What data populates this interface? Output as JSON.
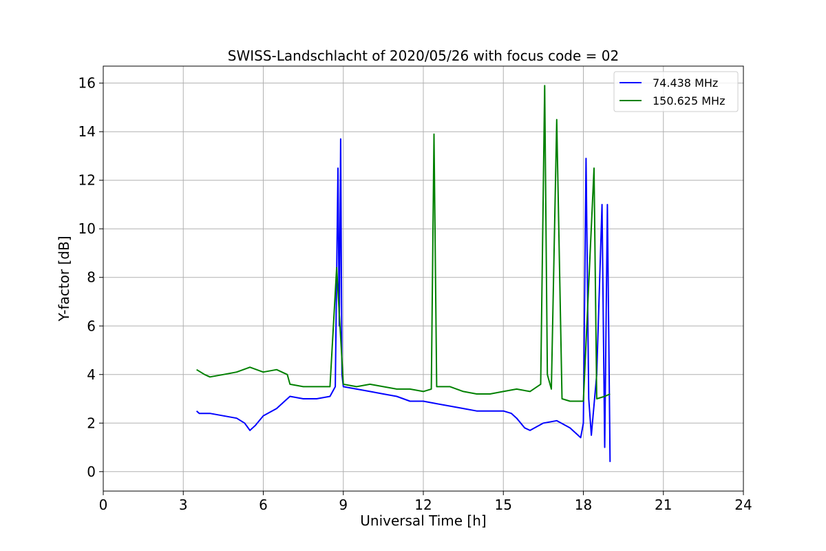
{
  "chart_data": {
    "type": "line",
    "title": "SWISS-Landschlacht of 2020/05/26 with focus code = 02",
    "xlabel": "Universal Time [h]",
    "ylabel": "Y-factor [dB]",
    "xlim": [
      0,
      24
    ],
    "ylim": [
      -0.8,
      16.7
    ],
    "xticks": [
      0,
      3,
      6,
      9,
      12,
      15,
      18,
      21,
      24
    ],
    "yticks": [
      0,
      2,
      4,
      6,
      8,
      10,
      12,
      14,
      16
    ],
    "grid": true,
    "legend_position": "top-right",
    "series": [
      {
        "name": "74.438 MHz",
        "color": "#0000ff",
        "x": [
          3.5,
          3.6,
          4.0,
          4.5,
          5.0,
          5.3,
          5.5,
          5.6,
          5.7,
          6.0,
          6.5,
          6.8,
          7.0,
          7.5,
          8.0,
          8.5,
          8.7,
          8.8,
          8.85,
          8.9,
          8.95,
          9.0,
          9.5,
          10.0,
          10.5,
          11.0,
          11.5,
          12.0,
          12.5,
          13.0,
          13.5,
          14.0,
          14.5,
          15.0,
          15.3,
          15.5,
          15.8,
          16.0,
          16.5,
          17.0,
          17.5,
          17.9,
          18.0,
          18.1,
          18.2,
          18.3,
          18.5,
          18.7,
          18.8,
          18.9,
          19.0
        ],
        "values": [
          2.5,
          2.4,
          2.4,
          2.3,
          2.2,
          2.0,
          1.7,
          1.8,
          1.9,
          2.3,
          2.6,
          2.9,
          3.1,
          3.0,
          3.0,
          3.1,
          3.5,
          12.5,
          6.0,
          13.7,
          4.0,
          3.5,
          3.4,
          3.3,
          3.2,
          3.1,
          2.9,
          2.9,
          2.8,
          2.7,
          2.6,
          2.5,
          2.5,
          2.5,
          2.4,
          2.2,
          1.8,
          1.7,
          2.0,
          2.1,
          1.8,
          1.4,
          2.0,
          12.9,
          3.0,
          1.5,
          4.0,
          11.0,
          1.0,
          11.0,
          0.4
        ]
      },
      {
        "name": "150.625 MHz",
        "color": "#008000",
        "x": [
          3.5,
          3.8,
          4.0,
          4.5,
          5.0,
          5.5,
          6.0,
          6.5,
          6.9,
          7.0,
          7.5,
          8.0,
          8.5,
          8.75,
          9.0,
          9.5,
          10.0,
          10.5,
          11.0,
          11.5,
          12.0,
          12.3,
          12.4,
          12.5,
          13.0,
          13.5,
          14.0,
          14.5,
          15.0,
          15.5,
          16.0,
          16.4,
          16.55,
          16.65,
          16.8,
          17.0,
          17.2,
          17.5,
          18.0,
          18.4,
          18.5,
          18.8,
          19.0
        ],
        "values": [
          4.2,
          4.0,
          3.9,
          4.0,
          4.1,
          4.3,
          4.1,
          4.2,
          4.0,
          3.6,
          3.5,
          3.5,
          3.5,
          8.4,
          3.6,
          3.5,
          3.6,
          3.5,
          3.4,
          3.4,
          3.3,
          3.4,
          13.9,
          3.5,
          3.5,
          3.3,
          3.2,
          3.2,
          3.3,
          3.4,
          3.3,
          3.6,
          15.9,
          4.0,
          3.4,
          14.5,
          3.0,
          2.9,
          2.9,
          12.5,
          3.0,
          3.1,
          3.2
        ]
      }
    ]
  }
}
